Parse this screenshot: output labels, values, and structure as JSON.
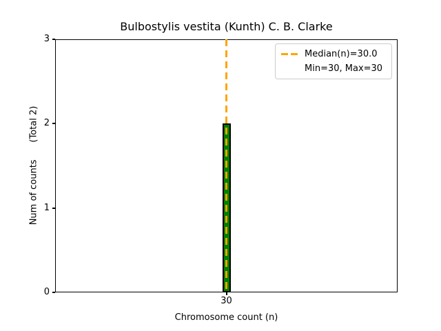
{
  "chart_data": {
    "type": "bar",
    "title": "Bulbostylis vestita (Kunth) C. B. Clarke",
    "xlabel": "Chromosome count (n)",
    "ylabel": "Num of counts      (Total 2)",
    "categories": [
      30
    ],
    "values": [
      2
    ],
    "series_stats": {
      "total_counts": 2,
      "median_n": 30.0,
      "min_n": 30,
      "max_n": 30
    },
    "xticks": [
      "30"
    ],
    "yticks": [
      0,
      1,
      2,
      3
    ],
    "ylim": [
      0,
      3
    ],
    "grid": false,
    "legend_position": "upper right",
    "colors": {
      "bar_fill": "#008000",
      "bar_edge": "#000000",
      "median_line": "#FFA500",
      "legend_border": "#cccccc",
      "text": "#000000",
      "background": "#ffffff"
    }
  },
  "legend": {
    "entries": [
      {
        "swatch": "orange-dashed-line",
        "label": "Median(n)=30.0"
      },
      {
        "swatch": "none",
        "label": "Min=30, Max=30"
      }
    ]
  }
}
